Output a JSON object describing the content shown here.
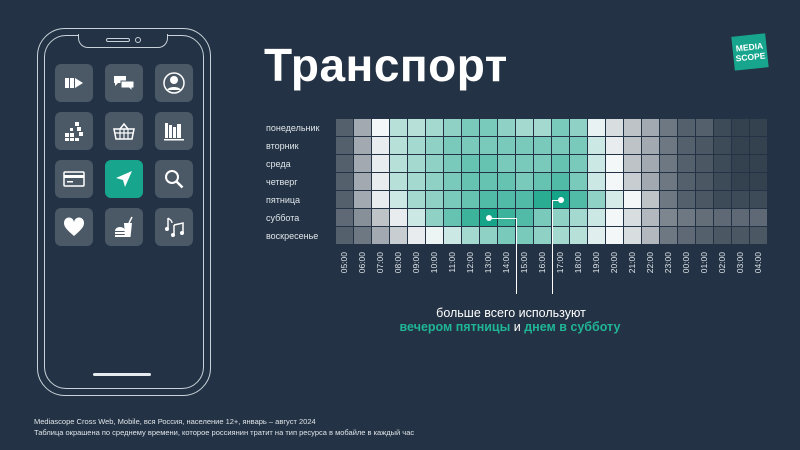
{
  "title": "Транспорт",
  "logo": {
    "line1": "MEDIA",
    "line2": "SCOPE",
    "color": "#17a68d"
  },
  "phone": {
    "apps": [
      {
        "icon": "video-play-icon",
        "active": false
      },
      {
        "icon": "chat-bubbles-icon",
        "active": false
      },
      {
        "icon": "user-profile-icon",
        "active": false
      },
      {
        "icon": "blocks-game-icon",
        "active": false
      },
      {
        "icon": "shopping-basket-icon",
        "active": false
      },
      {
        "icon": "books-library-icon",
        "active": false
      },
      {
        "icon": "credit-card-icon",
        "active": false
      },
      {
        "icon": "navigation-arrow-icon",
        "active": true
      },
      {
        "icon": "search-icon",
        "active": false
      },
      {
        "icon": "heart-icon",
        "active": false
      },
      {
        "icon": "fast-food-icon",
        "active": false
      },
      {
        "icon": "music-notes-icon",
        "active": false
      }
    ]
  },
  "chart_data": {
    "type": "heatmap",
    "rows": [
      "понедельник",
      "вторник",
      "среда",
      "четверг",
      "пятница",
      "суббота",
      "воскресенье"
    ],
    "columns": [
      "05:00",
      "06:00",
      "07:00",
      "08:00",
      "09:00",
      "10:00",
      "11:00",
      "12:00",
      "13:00",
      "14:00",
      "15:00",
      "16:00",
      "17:00",
      "18:00",
      "19:00",
      "20:00",
      "21:00",
      "22:00",
      "23:00",
      "00:00",
      "01:00",
      "02:00",
      "03:00",
      "04:00"
    ],
    "scale": "relative intensity 0–10 (dark → white → teal)",
    "colors": {
      "low": "#283645",
      "mid": "#f4f7f8",
      "high": "#15a488"
    },
    "values": [
      [
        1,
        2.5,
        4,
        5.5,
        5.5,
        6,
        6.5,
        7,
        7,
        6.5,
        6,
        6,
        7,
        6.5,
        4.3,
        3.5,
        3,
        2.5,
        1.5,
        1,
        1,
        0.5,
        0.3,
        0.3
      ],
      [
        1,
        2.5,
        3.8,
        5.5,
        6,
        6.5,
        7,
        7,
        7,
        7,
        7,
        7,
        7,
        7,
        5,
        3.8,
        3,
        2.5,
        1.5,
        1,
        0.8,
        0.5,
        0.3,
        0.3
      ],
      [
        1,
        2.5,
        3.8,
        5.5,
        6,
        6.5,
        7,
        7.5,
        7.5,
        7,
        7,
        7,
        7.5,
        7,
        5,
        4,
        3,
        2.5,
        1.5,
        1,
        0.8,
        0.5,
        0.3,
        0.3
      ],
      [
        1,
        2.5,
        3.8,
        5.5,
        6,
        6.5,
        7,
        7.5,
        7.5,
        7.5,
        7,
        7.5,
        8,
        7,
        5,
        4,
        3.2,
        2.5,
        1.5,
        1,
        0.8,
        0.5,
        0.3,
        0.3
      ],
      [
        1,
        2.5,
        3.8,
        5,
        6,
        6.5,
        7,
        7.5,
        8,
        8,
        8,
        9,
        9.5,
        8,
        6.5,
        4.8,
        4,
        3,
        1.5,
        1,
        0.8,
        0.5,
        0.5,
        0.5
      ],
      [
        1.2,
        2,
        3,
        3.8,
        5,
        6.5,
        7.5,
        8.5,
        9.5,
        8.5,
        8,
        7,
        6.5,
        6,
        5,
        4,
        3.5,
        2.8,
        1.8,
        1.5,
        1.3,
        1.2,
        1.2,
        1.2
      ],
      [
        1,
        1.5,
        2.5,
        3.2,
        3.8,
        4.2,
        5,
        6,
        6.5,
        7,
        7,
        6.5,
        6,
        5.5,
        4.5,
        4,
        3.5,
        2.8,
        1.5,
        1.2,
        1,
        0.8,
        0.8,
        0.8
      ]
    ],
    "highlights": [
      {
        "row": "суббота",
        "column": "13:00"
      },
      {
        "row": "пятница",
        "column": "17:00"
      }
    ],
    "annotation": {
      "line1": "больше всего используют",
      "part1": "вечером пятницы",
      "part2": " и ",
      "part3": "днем в субботу"
    }
  },
  "footer": {
    "source": "Mediascope Cross Web, Mobile, вся Россия, население 12+, январь – август 2024",
    "note": "Таблица окрашена по среднему времени, которое россиянин тратит на тип ресурса в мобайле в каждый час"
  }
}
